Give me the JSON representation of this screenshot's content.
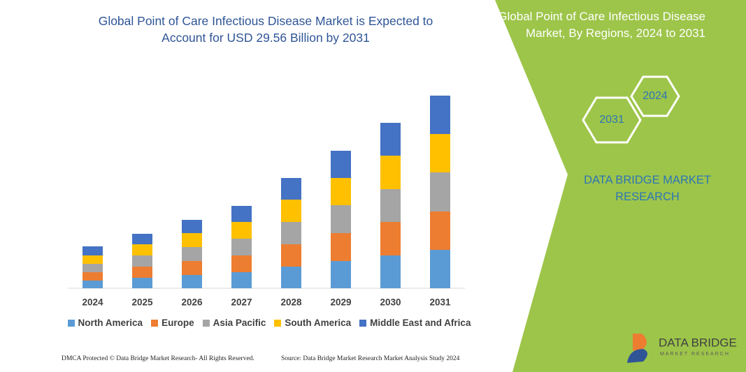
{
  "chart_data": {
    "type": "bar",
    "stacked": true,
    "title": "Global Point of Care Infectious Disease Market is Expected to Account for USD 29.56 Billion by 2031",
    "categories": [
      "2024",
      "2025",
      "2026",
      "2027",
      "2028",
      "2029",
      "2030",
      "2031"
    ],
    "series": [
      {
        "name": "North America",
        "color": "#5b9bd5",
        "values": [
          11,
          15,
          19,
          23,
          31,
          39,
          47,
          55
        ]
      },
      {
        "name": "Europe",
        "color": "#ed7d31",
        "values": [
          12,
          16,
          20,
          24,
          32,
          40,
          48,
          55
        ]
      },
      {
        "name": "Asia Pacific",
        "color": "#a5a5a5",
        "values": [
          12,
          16,
          20,
          24,
          32,
          40,
          47,
          56
        ]
      },
      {
        "name": "South America",
        "color": "#ffc000",
        "values": [
          12,
          16,
          20,
          24,
          32,
          39,
          48,
          55
        ]
      },
      {
        "name": "Middle East and Africa",
        "color": "#4472c4",
        "values": [
          13,
          15,
          19,
          23,
          31,
          39,
          47,
          55
        ]
      }
    ],
    "ylim": [
      0,
      280
    ]
  },
  "panel": {
    "title": "Global Point of Care Infectious Disease Market, By Regions, 2024 to 2031",
    "hex_start": "2024",
    "hex_end": "2031",
    "brand": "DATA BRIDGE MARKET RESEARCH"
  },
  "footer": {
    "left": "DMCA Protected © Data Bridge Market Research- All Rights Reserved.",
    "right": "Source: Data Bridge Market Research Market Analysis Study 2024"
  },
  "logo": {
    "name": "DATA BRIDGE",
    "tagline": "MARKET RESEARCH"
  }
}
